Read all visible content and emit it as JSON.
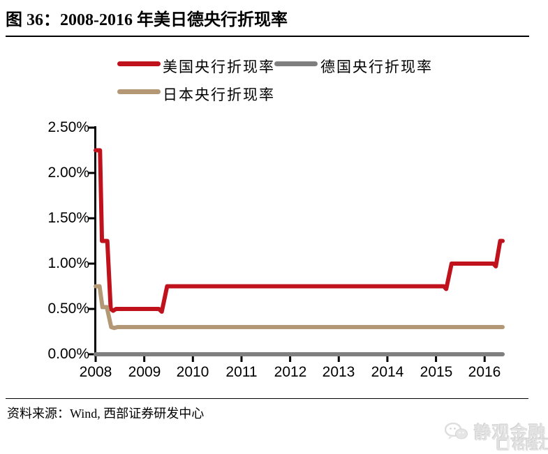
{
  "figure": {
    "title": "图 36：2008-2016 年美日德央行折现率",
    "source_note": "资料来源：Wind, 西部证券研发中心"
  },
  "watermark": {
    "wechat_name": "静观金融",
    "site_name": "格隆汇"
  },
  "chart_data": {
    "type": "line",
    "title": "2008-2016 年美日德央行折现率",
    "xlabel": "",
    "ylabel": "",
    "x_range": [
      2008,
      2016.37
    ],
    "y_range_percent": [
      0,
      2.5
    ],
    "grid": false,
    "legend_position": "top-left",
    "y_tick_labels": [
      "2.50%",
      "2.00%",
      "1.50%",
      "1.00%",
      "0.50%",
      "0.00%"
    ],
    "y_tick_values": [
      2.5,
      2.0,
      1.5,
      1.0,
      0.5,
      0.0
    ],
    "x_tick_labels": [
      "2008",
      "2009",
      "2010",
      "2011",
      "2012",
      "2013",
      "2014",
      "2015",
      "2016"
    ],
    "x_tick_values": [
      2008,
      2009,
      2010,
      2011,
      2012,
      2013,
      2014,
      2015,
      2016
    ],
    "axis_color": "#000000",
    "series": [
      {
        "name": "美国央行折现率",
        "color": "#C0121C",
        "points": [
          [
            2008.0,
            2.25
          ],
          [
            2008.09,
            2.25
          ],
          [
            2008.13,
            1.25
          ],
          [
            2008.24,
            1.25
          ],
          [
            2008.31,
            0.5
          ],
          [
            2008.36,
            0.48
          ],
          [
            2008.42,
            0.5
          ],
          [
            2009.3,
            0.5
          ],
          [
            2009.36,
            0.47
          ],
          [
            2009.47,
            0.75
          ],
          [
            2015.16,
            0.75
          ],
          [
            2015.21,
            0.72
          ],
          [
            2015.32,
            1.0
          ],
          [
            2016.18,
            1.0
          ],
          [
            2016.23,
            0.97
          ],
          [
            2016.32,
            1.25
          ],
          [
            2016.37,
            1.25
          ]
        ]
      },
      {
        "name": "德国央行折现率",
        "color": "#7F7F7F",
        "points": [
          [
            2008.0,
            0.0
          ],
          [
            2016.37,
            0.0
          ]
        ]
      },
      {
        "name": "日本央行折现率",
        "color": "#B49876",
        "points": [
          [
            2008.0,
            0.75
          ],
          [
            2008.08,
            0.75
          ],
          [
            2008.14,
            0.52
          ],
          [
            2008.23,
            0.52
          ],
          [
            2008.32,
            0.3
          ],
          [
            2008.38,
            0.29
          ],
          [
            2008.45,
            0.3
          ],
          [
            2016.37,
            0.3
          ]
        ]
      }
    ]
  }
}
